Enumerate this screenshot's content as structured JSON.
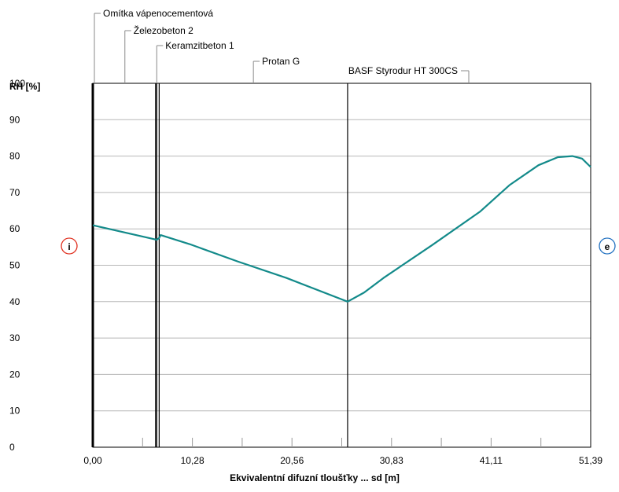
{
  "chart_data": {
    "type": "line",
    "ylabel": "RH [%]",
    "xlabel": "Ekvivalentní difuzní tloušťky ... sd [m]",
    "xlim": [
      0,
      51.39
    ],
    "ylim": [
      0,
      100
    ],
    "x_ticks": [
      0,
      10.28,
      20.56,
      30.83,
      41.11,
      51.39
    ],
    "x_tick_labels": [
      "0,00",
      "10,28",
      "20,56",
      "30,83",
      "41,11",
      "51,39"
    ],
    "y_ticks": [
      0,
      10,
      20,
      30,
      40,
      50,
      60,
      70,
      80,
      90,
      100
    ],
    "y_tick_labels": [
      "0",
      "10",
      "20",
      "30",
      "40",
      "50",
      "60",
      "70",
      "80",
      "90",
      "100"
    ],
    "grid": true,
    "series": [
      {
        "color": "#138a8a",
        "x": [
          0,
          6.6,
          6.85,
          7.0,
          10,
          15,
          20,
          26.3,
          28,
          30,
          35,
          40,
          43,
          46,
          48,
          49.5,
          50.5,
          51.39
        ],
        "y": [
          61,
          57,
          57.5,
          58.3,
          55.8,
          51,
          46.5,
          40,
          42.5,
          46.5,
          55.5,
          64.8,
          72,
          77.5,
          79.7,
          80,
          79.3,
          77
        ]
      }
    ],
    "layers": [
      {
        "name": "Omítka vápenocementová",
        "x_start": 0,
        "x_end": 0.02
      },
      {
        "name": "Železobeton 2",
        "x_start": 0.02,
        "x_end": 6.6
      },
      {
        "name": "Keramzitbeton 1",
        "x_start": 6.6,
        "x_end": 6.85
      },
      {
        "name": "Protan G",
        "x_start": 6.85,
        "x_end": 26.3
      },
      {
        "name": "BASF Styrodur HT 300CS",
        "x_start": 26.3,
        "x_end": 51.39
      }
    ],
    "layer_boundaries": [
      0,
      6.6,
      6.85,
      26.3
    ],
    "markers": {
      "interior": {
        "label": "i",
        "color": "#e03020"
      },
      "exterior": {
        "label": "e",
        "color": "#2070c0"
      }
    }
  }
}
